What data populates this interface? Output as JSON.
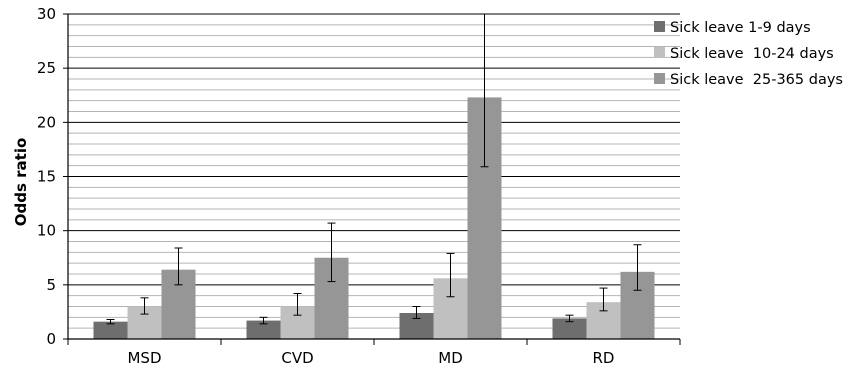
{
  "chart_data": {
    "type": "bar",
    "title": "",
    "xlabel": "",
    "ylabel": "Odds ratio",
    "categories": [
      "MSD",
      "CVD",
      "MD",
      "RD"
    ],
    "ylim": [
      0,
      30
    ],
    "yticks": [
      "0",
      "5",
      "10",
      "15",
      "20",
      "25",
      "30"
    ],
    "major_step": 5,
    "minor_step": 1,
    "grid": true,
    "legend_position": "top-right",
    "series": [
      {
        "name": "Sick leave 1-9 days",
        "color": "#6e6e6e",
        "values": [
          1.6,
          1.7,
          2.4,
          1.9
        ],
        "err_low": [
          1.4,
          1.4,
          1.9,
          1.6
        ],
        "err_high": [
          1.8,
          2.0,
          3.0,
          2.2
        ]
      },
      {
        "name": "Sick leave  10-24 days",
        "color": "#c0c0c0",
        "values": [
          3.0,
          3.0,
          5.6,
          3.4
        ],
        "err_low": [
          2.3,
          2.2,
          3.9,
          2.6
        ],
        "err_high": [
          3.8,
          4.2,
          7.9,
          4.7
        ]
      },
      {
        "name": "Sick leave  25-365 days",
        "color": "#969696",
        "values": [
          6.4,
          7.5,
          22.3,
          6.2
        ],
        "err_low": [
          5.0,
          5.3,
          15.9,
          4.5
        ],
        "err_high": [
          8.4,
          10.7,
          30.0,
          8.7
        ]
      }
    ]
  }
}
